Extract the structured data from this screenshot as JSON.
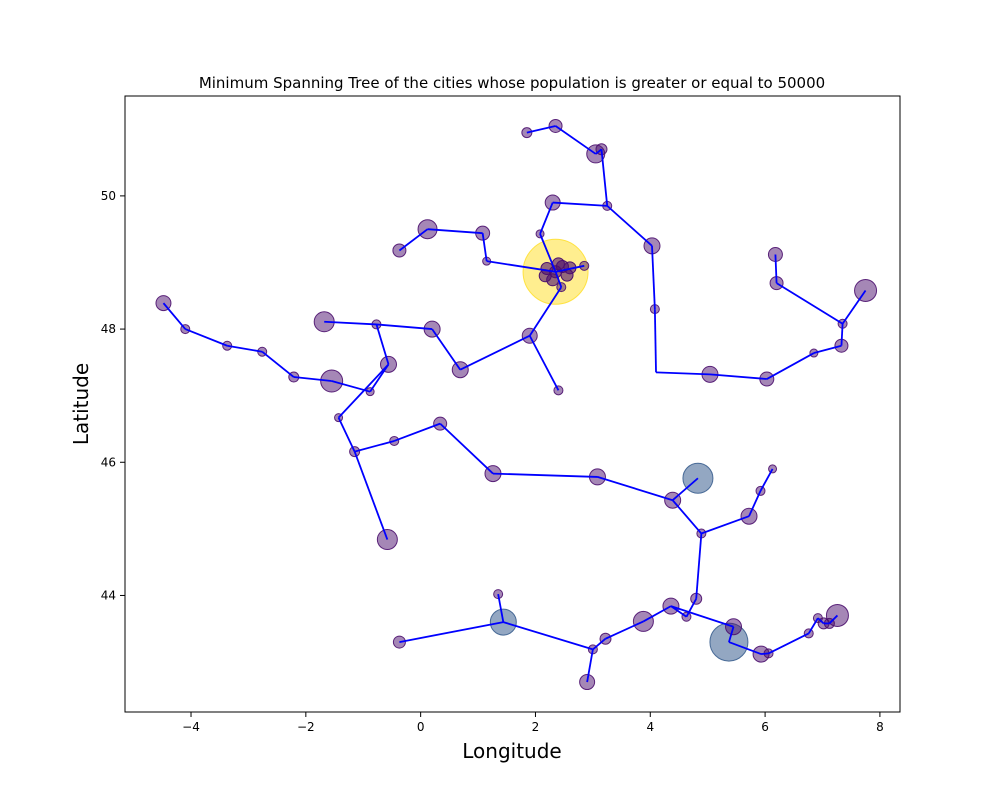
{
  "chart_data": {
    "type": "scatter",
    "title": "Minimum Spanning Tree of the cities whose population is greater or equal to 50000",
    "xlabel": "Longitude",
    "ylabel": "Latitude",
    "xlim": [
      -5.15,
      8.35
    ],
    "ylim": [
      42.25,
      51.5
    ],
    "xticks": [
      -4,
      -2,
      0,
      2,
      4,
      6,
      8
    ],
    "yticks": [
      44,
      46,
      48,
      50
    ],
    "grid": false,
    "legend": "none",
    "colors": {
      "edge": "#0000ff",
      "point": "#4b0f6e",
      "point_large": "#3b5f8f",
      "point_largest": "#ffe033"
    },
    "points": [
      {
        "lon": 1.85,
        "lat": 50.95,
        "size": 1
      },
      {
        "lon": 2.35,
        "lat": 51.05,
        "size": 1.3
      },
      {
        "lon": 3.15,
        "lat": 50.7,
        "size": 1.1
      },
      {
        "lon": 3.05,
        "lat": 50.63,
        "size": 1.8
      },
      {
        "lon": 3.25,
        "lat": 49.85,
        "size": 0.9
      },
      {
        "lon": 2.3,
        "lat": 49.9,
        "size": 1.5
      },
      {
        "lon": 4.03,
        "lat": 49.25,
        "size": 1.6
      },
      {
        "lon": 2.08,
        "lat": 49.43,
        "size": 0.8
      },
      {
        "lon": 0.12,
        "lat": 49.5,
        "size": 1.9
      },
      {
        "lon": 1.08,
        "lat": 49.44,
        "size": 1.4
      },
      {
        "lon": -0.37,
        "lat": 49.18,
        "size": 1.3
      },
      {
        "lon": 1.15,
        "lat": 49.02,
        "size": 0.8
      },
      {
        "lon": 2.35,
        "lat": 48.86,
        "size": 6.5,
        "tone": "largest"
      },
      {
        "lon": 2.85,
        "lat": 48.95,
        "size": 0.9
      },
      {
        "lon": 2.45,
        "lat": 48.63,
        "size": 0.9
      },
      {
        "lon": 4.08,
        "lat": 48.3,
        "size": 0.9
      },
      {
        "lon": 6.18,
        "lat": 49.12,
        "size": 1.4
      },
      {
        "lon": 6.2,
        "lat": 48.69,
        "size": 1.3
      },
      {
        "lon": 7.75,
        "lat": 48.58,
        "size": 2.2
      },
      {
        "lon": 7.35,
        "lat": 48.08,
        "size": 0.9
      },
      {
        "lon": 7.33,
        "lat": 47.75,
        "size": 1.3
      },
      {
        "lon": 6.85,
        "lat": 47.64,
        "size": 0.8
      },
      {
        "lon": 6.03,
        "lat": 47.25,
        "size": 1.4
      },
      {
        "lon": 5.04,
        "lat": 47.32,
        "size": 1.6
      },
      {
        "lon": -4.48,
        "lat": 48.39,
        "size": 1.5
      },
      {
        "lon": -4.1,
        "lat": 48.0,
        "size": 0.9
      },
      {
        "lon": -3.37,
        "lat": 47.75,
        "size": 0.9
      },
      {
        "lon": -2.76,
        "lat": 47.66,
        "size": 0.9
      },
      {
        "lon": -2.21,
        "lat": 47.28,
        "size": 1.0
      },
      {
        "lon": -1.68,
        "lat": 48.11,
        "size": 2.0
      },
      {
        "lon": -0.77,
        "lat": 48.07,
        "size": 0.9
      },
      {
        "lon": 0.2,
        "lat": 48.0,
        "size": 1.6
      },
      {
        "lon": -1.55,
        "lat": 47.22,
        "size": 2.2
      },
      {
        "lon": -0.56,
        "lat": 47.47,
        "size": 1.6
      },
      {
        "lon": -0.88,
        "lat": 47.06,
        "size": 0.8
      },
      {
        "lon": 0.69,
        "lat": 47.39,
        "size": 1.6
      },
      {
        "lon": 1.9,
        "lat": 47.9,
        "size": 1.5
      },
      {
        "lon": 2.4,
        "lat": 47.08,
        "size": 0.9
      },
      {
        "lon": -1.43,
        "lat": 46.67,
        "size": 0.8
      },
      {
        "lon": -1.15,
        "lat": 46.16,
        "size": 1.0
      },
      {
        "lon": -0.46,
        "lat": 46.32,
        "size": 0.9
      },
      {
        "lon": 0.34,
        "lat": 46.58,
        "size": 1.3
      },
      {
        "lon": -0.58,
        "lat": 44.84,
        "size": 2.0
      },
      {
        "lon": 1.26,
        "lat": 45.83,
        "size": 1.6
      },
      {
        "lon": 3.08,
        "lat": 45.78,
        "size": 1.6
      },
      {
        "lon": 4.83,
        "lat": 45.76,
        "size": 3.0,
        "tone": "large"
      },
      {
        "lon": 4.39,
        "lat": 45.43,
        "size": 1.6
      },
      {
        "lon": 6.13,
        "lat": 45.9,
        "size": 0.8
      },
      {
        "lon": 5.92,
        "lat": 45.57,
        "size": 0.9
      },
      {
        "lon": 5.72,
        "lat": 45.19,
        "size": 1.6
      },
      {
        "lon": 4.89,
        "lat": 44.93,
        "size": 0.9
      },
      {
        "lon": 4.8,
        "lat": 43.95,
        "size": 1.1
      },
      {
        "lon": 4.36,
        "lat": 43.84,
        "size": 1.6
      },
      {
        "lon": 4.63,
        "lat": 43.68,
        "size": 0.9
      },
      {
        "lon": 3.88,
        "lat": 43.61,
        "size": 2.0
      },
      {
        "lon": 3.22,
        "lat": 43.35,
        "size": 1.1
      },
      {
        "lon": 3.0,
        "lat": 43.19,
        "size": 0.9
      },
      {
        "lon": 2.9,
        "lat": 42.7,
        "size": 1.5
      },
      {
        "lon": 1.44,
        "lat": 43.6,
        "size": 2.6,
        "tone": "large"
      },
      {
        "lon": 1.35,
        "lat": 44.02,
        "size": 0.9
      },
      {
        "lon": -0.37,
        "lat": 43.3,
        "size": 1.2
      },
      {
        "lon": 5.37,
        "lat": 43.3,
        "size": 3.8,
        "tone": "large"
      },
      {
        "lon": 5.45,
        "lat": 43.53,
        "size": 1.6
      },
      {
        "lon": 5.93,
        "lat": 43.12,
        "size": 1.6
      },
      {
        "lon": 6.06,
        "lat": 43.13,
        "size": 0.9
      },
      {
        "lon": 6.76,
        "lat": 43.43,
        "size": 0.9
      },
      {
        "lon": 6.92,
        "lat": 43.66,
        "size": 0.9
      },
      {
        "lon": 7.02,
        "lat": 43.58,
        "size": 1.1
      },
      {
        "lon": 7.12,
        "lat": 43.58,
        "size": 1.0
      },
      {
        "lon": 7.26,
        "lat": 43.7,
        "size": 2.2
      }
    ],
    "edges": [
      [
        [
          1.85,
          50.95
        ],
        [
          2.35,
          51.05
        ]
      ],
      [
        [
          2.35,
          51.05
        ],
        [
          3.05,
          50.63
        ]
      ],
      [
        [
          3.05,
          50.63
        ],
        [
          3.15,
          50.7
        ]
      ],
      [
        [
          3.15,
          50.7
        ],
        [
          3.25,
          49.85
        ]
      ],
      [
        [
          3.25,
          49.85
        ],
        [
          2.3,
          49.9
        ]
      ],
      [
        [
          3.25,
          49.85
        ],
        [
          4.03,
          49.25
        ]
      ],
      [
        [
          4.03,
          49.25
        ],
        [
          4.08,
          48.3
        ]
      ],
      [
        [
          4.08,
          48.3
        ],
        [
          4.1,
          47.35
        ]
      ],
      [
        [
          4.1,
          47.35
        ],
        [
          5.04,
          47.32
        ]
      ],
      [
        [
          5.04,
          47.32
        ],
        [
          6.03,
          47.25
        ]
      ],
      [
        [
          6.03,
          47.25
        ],
        [
          6.85,
          47.64
        ]
      ],
      [
        [
          6.85,
          47.64
        ],
        [
          7.33,
          47.75
        ]
      ],
      [
        [
          7.33,
          47.75
        ],
        [
          7.35,
          48.08
        ]
      ],
      [
        [
          7.35,
          48.08
        ],
        [
          7.75,
          48.58
        ]
      ],
      [
        [
          7.35,
          48.08
        ],
        [
          6.2,
          48.69
        ]
      ],
      [
        [
          6.2,
          48.69
        ],
        [
          6.18,
          49.12
        ]
      ],
      [
        [
          2.3,
          49.9
        ],
        [
          2.08,
          49.43
        ]
      ],
      [
        [
          2.08,
          49.43
        ],
        [
          2.35,
          48.86
        ]
      ],
      [
        [
          2.35,
          48.86
        ],
        [
          2.85,
          48.95
        ]
      ],
      [
        [
          2.35,
          48.86
        ],
        [
          1.15,
          49.02
        ]
      ],
      [
        [
          1.15,
          49.02
        ],
        [
          1.08,
          49.44
        ]
      ],
      [
        [
          1.08,
          49.44
        ],
        [
          0.12,
          49.5
        ]
      ],
      [
        [
          0.12,
          49.5
        ],
        [
          -0.37,
          49.18
        ]
      ],
      [
        [
          2.35,
          48.86
        ],
        [
          2.45,
          48.63
        ]
      ],
      [
        [
          2.45,
          48.63
        ],
        [
          1.9,
          47.9
        ]
      ],
      [
        [
          1.9,
          47.9
        ],
        [
          2.4,
          47.08
        ]
      ],
      [
        [
          1.9,
          47.9
        ],
        [
          0.69,
          47.39
        ]
      ],
      [
        [
          0.69,
          47.39
        ],
        [
          0.2,
          48.0
        ]
      ],
      [
        [
          0.2,
          48.0
        ],
        [
          -0.77,
          48.07
        ]
      ],
      [
        [
          -0.77,
          48.07
        ],
        [
          -1.68,
          48.11
        ]
      ],
      [
        [
          -0.77,
          48.07
        ],
        [
          -0.56,
          47.47
        ]
      ],
      [
        [
          -0.56,
          47.47
        ],
        [
          -0.88,
          47.06
        ]
      ],
      [
        [
          -0.88,
          47.06
        ],
        [
          -1.55,
          47.22
        ]
      ],
      [
        [
          -0.56,
          47.47
        ],
        [
          -1.43,
          46.67
        ]
      ],
      [
        [
          -1.43,
          46.67
        ],
        [
          -1.15,
          46.16
        ]
      ],
      [
        [
          -1.15,
          46.16
        ],
        [
          -0.46,
          46.32
        ]
      ],
      [
        [
          -0.46,
          46.32
        ],
        [
          0.34,
          46.58
        ]
      ],
      [
        [
          0.34,
          46.58
        ],
        [
          1.26,
          45.83
        ]
      ],
      [
        [
          1.26,
          45.83
        ],
        [
          3.08,
          45.78
        ]
      ],
      [
        [
          3.08,
          45.78
        ],
        [
          4.39,
          45.43
        ]
      ],
      [
        [
          4.39,
          45.43
        ],
        [
          4.83,
          45.76
        ]
      ],
      [
        [
          4.39,
          45.43
        ],
        [
          4.89,
          44.93
        ]
      ],
      [
        [
          4.89,
          44.93
        ],
        [
          5.72,
          45.19
        ]
      ],
      [
        [
          5.72,
          45.19
        ],
        [
          5.92,
          45.57
        ]
      ],
      [
        [
          5.92,
          45.57
        ],
        [
          6.13,
          45.9
        ]
      ],
      [
        [
          4.89,
          44.93
        ],
        [
          4.8,
          43.95
        ]
      ],
      [
        [
          4.8,
          43.95
        ],
        [
          4.63,
          43.68
        ]
      ],
      [
        [
          4.63,
          43.68
        ],
        [
          4.36,
          43.84
        ]
      ],
      [
        [
          4.36,
          43.84
        ],
        [
          3.88,
          43.61
        ]
      ],
      [
        [
          3.88,
          43.61
        ],
        [
          3.22,
          43.35
        ]
      ],
      [
        [
          3.22,
          43.35
        ],
        [
          3.0,
          43.19
        ]
      ],
      [
        [
          3.0,
          43.19
        ],
        [
          2.9,
          42.7
        ]
      ],
      [
        [
          3.0,
          43.19
        ],
        [
          1.44,
          43.6
        ]
      ],
      [
        [
          1.44,
          43.6
        ],
        [
          1.35,
          44.02
        ]
      ],
      [
        [
          1.44,
          43.6
        ],
        [
          -0.37,
          43.3
        ]
      ],
      [
        [
          -1.15,
          46.16
        ],
        [
          -0.58,
          44.84
        ]
      ],
      [
        [
          -4.48,
          48.39
        ],
        [
          -4.1,
          48.0
        ]
      ],
      [
        [
          -4.1,
          48.0
        ],
        [
          -3.37,
          47.75
        ]
      ],
      [
        [
          -3.37,
          47.75
        ],
        [
          -2.76,
          47.66
        ]
      ],
      [
        [
          -2.76,
          47.66
        ],
        [
          -2.21,
          47.28
        ]
      ],
      [
        [
          -2.21,
          47.28
        ],
        [
          -1.55,
          47.22
        ]
      ],
      [
        [
          4.36,
          43.84
        ],
        [
          5.45,
          43.53
        ]
      ],
      [
        [
          5.45,
          43.53
        ],
        [
          5.37,
          43.3
        ]
      ],
      [
        [
          5.37,
          43.3
        ],
        [
          5.93,
          43.12
        ]
      ],
      [
        [
          5.93,
          43.12
        ],
        [
          6.06,
          43.13
        ]
      ],
      [
        [
          6.06,
          43.13
        ],
        [
          6.76,
          43.43
        ]
      ],
      [
        [
          6.76,
          43.43
        ],
        [
          6.92,
          43.66
        ]
      ],
      [
        [
          6.92,
          43.66
        ],
        [
          7.02,
          43.58
        ]
      ],
      [
        [
          7.02,
          43.58
        ],
        [
          7.12,
          43.58
        ]
      ],
      [
        [
          7.12,
          43.58
        ],
        [
          7.26,
          43.7
        ]
      ]
    ]
  }
}
